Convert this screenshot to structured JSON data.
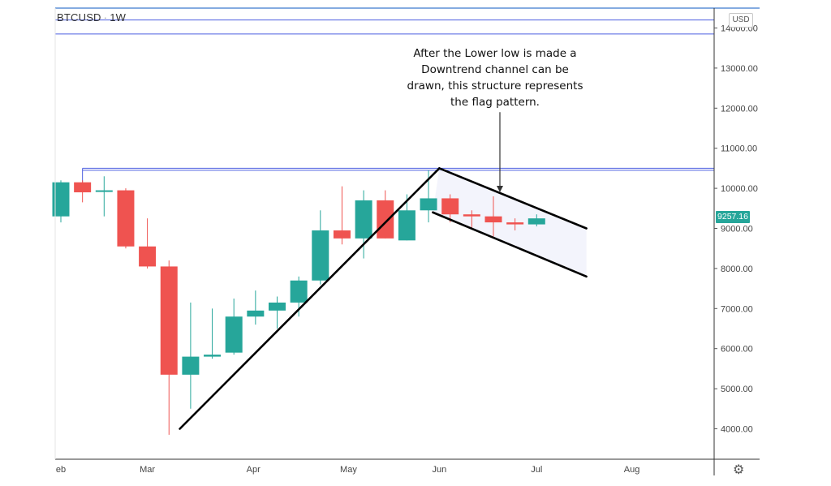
{
  "header": {
    "symbol": "BTCUSD",
    "interval": "1W",
    "currency": "USD"
  },
  "annotation": {
    "lines": [
      "After the Lower low is made a",
      "Downtrend channel can be",
      "drawn, this structure represents",
      "the flag pattern."
    ]
  },
  "price_tag": "9257.16",
  "colors": {
    "up": "#26a69a",
    "down": "#ef5350",
    "line": "#000000",
    "hline": "#4d5fe0",
    "channel_fill": "#eef0fb"
  },
  "chart_data": {
    "type": "candlestick",
    "title": "",
    "xlabel": "",
    "ylabel": "",
    "ylim": [
      3700,
      14300
    ],
    "y_ticks": [
      4000,
      5000,
      6000,
      7000,
      8000,
      9000,
      10000,
      11000,
      12000,
      13000,
      14000
    ],
    "y_tick_labels": [
      "4000.00",
      "5000.00",
      "6000.00",
      "7000.00",
      "8000.00",
      "9000.00",
      "10000.00",
      "11000.00",
      "12000.00",
      "13000.00",
      "14000.00"
    ],
    "x_labels": [
      "eb",
      "Mar",
      "Apr",
      "May",
      "Jun",
      "Jul",
      "Aug"
    ],
    "x_label_weeks": [
      0,
      4,
      8.9,
      13.3,
      17.5,
      22,
      26.4
    ],
    "candles": [
      {
        "w": 0,
        "open": 9300,
        "high": 10200,
        "low": 9150,
        "close": 10150
      },
      {
        "w": 1,
        "open": 10150,
        "high": 10200,
        "low": 9650,
        "close": 9900
      },
      {
        "w": 2,
        "open": 9950,
        "high": 10300,
        "low": 9300,
        "close": 9950
      },
      {
        "w": 3,
        "open": 9950,
        "high": 10000,
        "low": 8500,
        "close": 8550
      },
      {
        "w": 4,
        "open": 8550,
        "high": 9250,
        "low": 8000,
        "close": 8050
      },
      {
        "w": 5,
        "open": 8050,
        "high": 8200,
        "low": 3850,
        "close": 5350
      },
      {
        "w": 6,
        "open": 5350,
        "high": 7150,
        "low": 4500,
        "close": 5800
      },
      {
        "w": 7,
        "open": 5800,
        "high": 7000,
        "low": 5750,
        "close": 5850
      },
      {
        "w": 8,
        "open": 5900,
        "high": 7250,
        "low": 5850,
        "close": 6800
      },
      {
        "w": 9,
        "open": 6800,
        "high": 7450,
        "low": 6600,
        "close": 6950
      },
      {
        "w": 10,
        "open": 6950,
        "high": 7300,
        "low": 6500,
        "close": 7150
      },
      {
        "w": 11,
        "open": 7150,
        "high": 7800,
        "low": 6800,
        "close": 7700
      },
      {
        "w": 12,
        "open": 7700,
        "high": 9450,
        "low": 7600,
        "close": 8950
      },
      {
        "w": 13,
        "open": 8950,
        "high": 10050,
        "low": 8600,
        "close": 8750
      },
      {
        "w": 14,
        "open": 8750,
        "high": 9950,
        "low": 8250,
        "close": 9700
      },
      {
        "w": 15,
        "open": 9700,
        "high": 9950,
        "low": 8750,
        "close": 8750
      },
      {
        "w": 16,
        "open": 8700,
        "high": 9850,
        "low": 8700,
        "close": 9450
      },
      {
        "w": 17,
        "open": 9450,
        "high": 10450,
        "low": 9150,
        "close": 9750
      },
      {
        "w": 18,
        "open": 9750,
        "high": 9850,
        "low": 9150,
        "close": 9350
      },
      {
        "w": 19,
        "open": 9350,
        "high": 9450,
        "low": 9000,
        "close": 9300
      },
      {
        "w": 20,
        "open": 9300,
        "high": 9800,
        "low": 8800,
        "close": 9150
      },
      {
        "w": 21,
        "open": 9150,
        "high": 9250,
        "low": 8950,
        "close": 9100
      },
      {
        "w": 22,
        "open": 9100,
        "high": 9350,
        "low": 9050,
        "close": 9250
      }
    ],
    "horizontal_lines": [
      14200,
      13850,
      10500,
      10450
    ],
    "trend_lines": [
      {
        "name": "uptrend",
        "from": [
          5.5,
          4000
        ],
        "to": [
          17.5,
          10500
        ]
      },
      {
        "name": "channel-upper",
        "from": [
          17.5,
          10500
        ],
        "to": [
          24.3,
          9000
        ]
      },
      {
        "name": "channel-lower",
        "from": [
          17.2,
          9400
        ],
        "to": [
          24.3,
          7800
        ]
      }
    ],
    "arrow": {
      "from": [
        20.3,
        11900
      ],
      "to": [
        20.3,
        9900
      ]
    },
    "grid": false,
    "legend": "none"
  }
}
